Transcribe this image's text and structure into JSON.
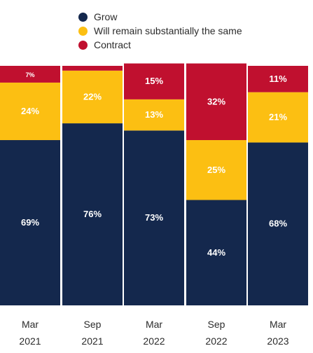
{
  "chart_data": {
    "type": "bar",
    "stacked": true,
    "percent_stacked": true,
    "title": "",
    "xlabel": "",
    "ylabel": "",
    "legend_position": "top",
    "categories": [
      "Mar\n2021",
      "Sep\n2021",
      "Mar\n2022",
      "Sep\n2022",
      "Mar\n2023"
    ],
    "series": [
      {
        "name": "Grow",
        "values": [
          69,
          76,
          73,
          44,
          68
        ],
        "labels": [
          "69%",
          "76%",
          "73%",
          "44%",
          "68%"
        ],
        "color": "#14284d",
        "label_color": "#ffffff"
      },
      {
        "name": "Will remain substantially the same",
        "values": [
          24,
          22,
          13,
          25,
          21
        ],
        "labels": [
          "24%",
          "22%",
          "13%",
          "25%",
          "21%"
        ],
        "color": "#fcbf12",
        "label_color": "#ffffff"
      },
      {
        "name": "Contract",
        "values": [
          7,
          2,
          15,
          32,
          11
        ],
        "labels": [
          "7%",
          "",
          "15%",
          "32%",
          "11%"
        ],
        "color": "#c0102f",
        "label_color": "#ffffff"
      }
    ],
    "ylim": [
      0,
      100
    ],
    "grid": false
  }
}
